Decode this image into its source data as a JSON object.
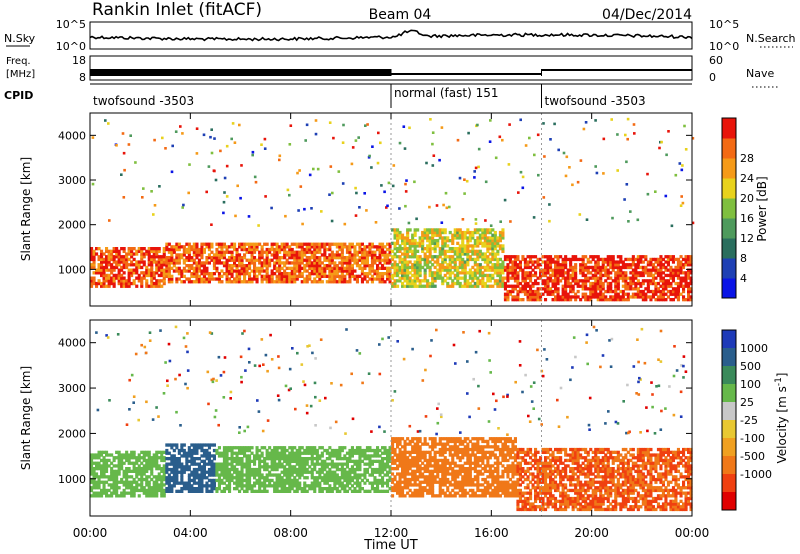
{
  "header": {
    "station": "Rankin Inlet (fitACF)",
    "beam": "Beam 04",
    "date": "04/Dec/2014"
  },
  "top_panels": {
    "nsky_label": "N.Sky",
    "nsky_ticks": [
      "10^5",
      "10^0"
    ],
    "nsearch_label": "N.Search",
    "nsearch_ticks": [
      "10^5",
      "10^0"
    ],
    "freq_label_1": "Freq.",
    "freq_label_2": "[MHz]",
    "freq_ticks": [
      "18",
      "8"
    ],
    "nave_label": "Nave",
    "nave_ticks": [
      "60",
      "0"
    ],
    "cpid_label": "CPID",
    "cpid_segments": [
      {
        "label": "twofsound -3503",
        "start_h": 0,
        "end_h": 12
      },
      {
        "label": "normal (fast) 151",
        "start_h": 12,
        "end_h": 18
      },
      {
        "label": "twofsound -3503",
        "start_h": 18,
        "end_h": 24
      }
    ]
  },
  "x_axis": {
    "label": "Time UT",
    "ticks": [
      "00:00",
      "04:00",
      "08:00",
      "12:00",
      "16:00",
      "20:00",
      "00:00"
    ]
  },
  "colors": {
    "power": [
      "#0a14e6",
      "#1e40b4",
      "#2a6e5e",
      "#4e9a5c",
      "#7fbf3f",
      "#e8d21c",
      "#f59a18",
      "#f36a14",
      "#e8140a"
    ],
    "velocity": [
      "#1e3ab8",
      "#2a5e8c",
      "#3a8a5a",
      "#66b84a",
      "#c8c8c8",
      "#e8c832",
      "#f0a020",
      "#f07818",
      "#f04010",
      "#e00000"
    ]
  },
  "chart_data": [
    {
      "type": "heatmap",
      "title": "Power",
      "ylabel": "Slant Range [km]",
      "xlabel": "Time UT",
      "xlim": [
        0,
        24
      ],
      "ylim": [
        180,
        4500
      ],
      "y_ticks": [
        1000,
        2000,
        3000,
        4000
      ],
      "colorbar_label": "Power [dB]",
      "colorbar_ticks": [
        "4",
        "8",
        "12",
        "16",
        "20",
        "24",
        "28"
      ],
      "range": [
        0,
        30
      ],
      "features": [
        {
          "t": [
            0,
            3.0
          ],
          "r": [
            600,
            1500
          ],
          "level": 26
        },
        {
          "t": [
            3.0,
            12
          ],
          "r": [
            700,
            1600
          ],
          "level": 25
        },
        {
          "t": [
            12,
            16.5
          ],
          "r": [
            600,
            1900
          ],
          "level": 18
        },
        {
          "t": [
            16.5,
            24
          ],
          "r": [
            300,
            1300
          ],
          "level": 28
        }
      ]
    },
    {
      "type": "heatmap",
      "title": "Velocity",
      "ylabel": "Slant Range [km]",
      "xlabel": "Time UT",
      "xlim": [
        0,
        24
      ],
      "ylim": [
        180,
        4500
      ],
      "y_ticks": [
        1000,
        2000,
        3000,
        4000
      ],
      "colorbar_label": "Velocity [m s^-1]",
      "colorbar_ticks": [
        "1000",
        "500",
        "100",
        "25",
        "-25",
        "-100",
        "-500",
        "-1000"
      ],
      "features": [
        {
          "t": [
            0,
            3.0
          ],
          "r": [
            600,
            1600
          ],
          "level": 150
        },
        {
          "t": [
            3.0,
            5.0
          ],
          "r": [
            700,
            1800
          ],
          "level": 900
        },
        {
          "t": [
            5.0,
            12
          ],
          "r": [
            700,
            1700
          ],
          "level": 120
        },
        {
          "t": [
            12,
            17
          ],
          "r": [
            600,
            1900
          ],
          "level": -150
        },
        {
          "t": [
            17,
            24
          ],
          "r": [
            300,
            1700
          ],
          "level": -250
        }
      ]
    }
  ]
}
